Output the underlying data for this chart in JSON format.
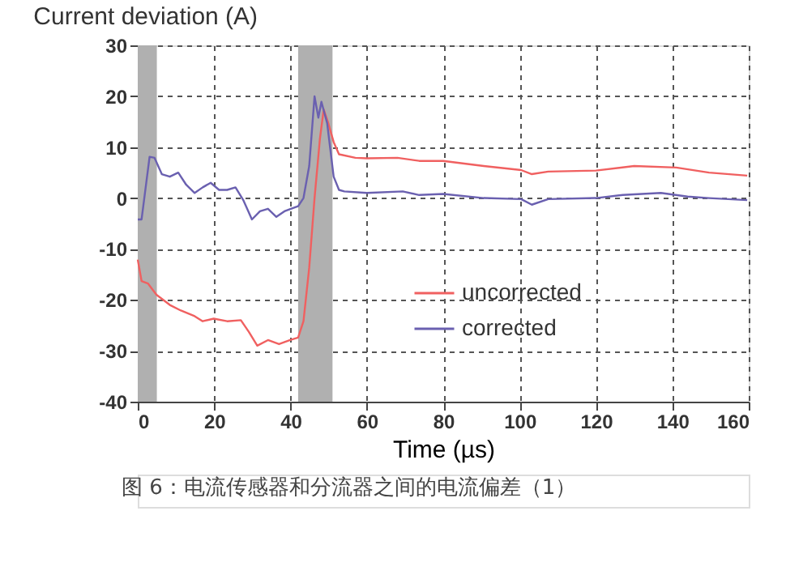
{
  "chart_data": {
    "type": "line",
    "title": "Current deviation (A)",
    "xlabel": "Time (µs)",
    "annotations": [
      "图 6：电流传感器和分流器之间的电流偏差（1）"
    ],
    "xlim": [
      0,
      160
    ],
    "xticks": [
      0,
      20,
      40,
      60,
      80,
      100,
      120,
      140,
      160
    ],
    "ylim": [
      -40,
      30
    ],
    "yticks": [
      -40,
      -30,
      -20,
      -10,
      0,
      10,
      20,
      30
    ],
    "grid": true,
    "legend": "right",
    "line_style": "solid",
    "bands": [
      {
        "axis": "x",
        "from": 0,
        "to": 5,
        "color": "#b0b0b0"
      },
      {
        "axis": "x",
        "from": 42,
        "to": 51,
        "color": "#b0b0b0"
      }
    ],
    "series": [
      {
        "name": "uncorrected",
        "color": "#f06060",
        "x": [
          0,
          1,
          2.7,
          4.9,
          8.4,
          11.3,
          14.9,
          17,
          19.9,
          23.4,
          27,
          29.1,
          31.3,
          34.1,
          37,
          39.9,
          42,
          43.4,
          44.9,
          46.3,
          47.7,
          48.7,
          49.9,
          51.3,
          52.7,
          57,
          60,
          68,
          73.7,
          80,
          90.6,
          100.4,
          103.2,
          107.5,
          120,
          130,
          141,
          149.6,
          159.6
        ],
        "values": [
          -12.1,
          -16.3,
          -16.8,
          -19,
          -21,
          -22.1,
          -23.2,
          -24.2,
          -23.7,
          -24.2,
          -24,
          -26.3,
          -29,
          -27.9,
          -28.7,
          -27.9,
          -27.4,
          -24.2,
          -13.7,
          0,
          11.6,
          17.4,
          14.7,
          11,
          8.6,
          7.9,
          7.8,
          7.9,
          7.3,
          7.3,
          6.3,
          5.5,
          4.7,
          5.2,
          5.4,
          6.3,
          6,
          5,
          4.4
        ]
      },
      {
        "name": "corrected",
        "color": "#6a60b0",
        "x": [
          0,
          1,
          3.1,
          4.4,
          6.3,
          8.4,
          10.6,
          12.7,
          14.9,
          17,
          19.1,
          21.3,
          23.4,
          25.6,
          27.7,
          29.9,
          32,
          34.1,
          36.3,
          38.4,
          40.1,
          42,
          43.4,
          44.9,
          46.3,
          47.3,
          48.1,
          49.6,
          51.3,
          52.7,
          54.1,
          60,
          69.4,
          73.7,
          80,
          90.6,
          100.4,
          103.2,
          107.5,
          120,
          127,
          137,
          144,
          149.6,
          159.6
        ],
        "values": [
          -4.2,
          -4.2,
          8.1,
          7.9,
          4.7,
          4.2,
          5,
          2.6,
          1,
          2.1,
          3,
          1.6,
          1.6,
          2.1,
          -0.5,
          -4.2,
          -2.6,
          -2.1,
          -3.7,
          -2.6,
          -2.1,
          -1.6,
          0,
          6.3,
          20,
          15.8,
          18.9,
          14.7,
          4.2,
          1.6,
          1.3,
          1,
          1.3,
          0.6,
          0.8,
          0,
          -0.2,
          -1.3,
          -0.2,
          0,
          0.6,
          1,
          0.3,
          0,
          -0.4
        ]
      }
    ]
  }
}
